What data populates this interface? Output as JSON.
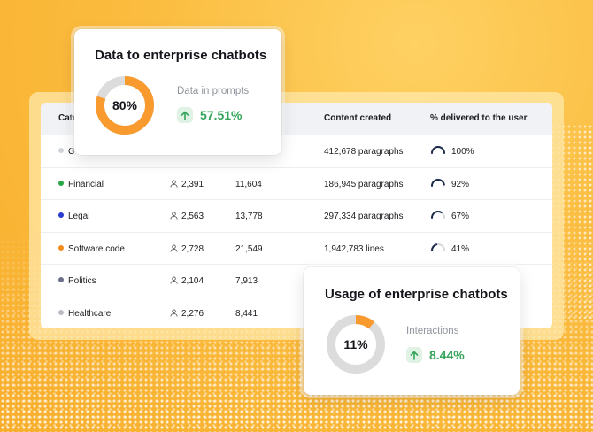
{
  "table": {
    "headers": {
      "category": "Cate",
      "content": "Content created",
      "pct": "% delivered to the user"
    },
    "rows": [
      {
        "category": "G",
        "dot_color": "#d0d3d9",
        "users": "",
        "prompts": "",
        "content": "412,678 paragraphs",
        "pct": "100%",
        "pct_value": 100
      },
      {
        "category": "Financial",
        "dot_color": "#2aa64a",
        "users": "2,391",
        "prompts": "11,604",
        "content": "186,945 paragraphs",
        "pct": "92%",
        "pct_value": 92
      },
      {
        "category": "Legal",
        "dot_color": "#2a3bd1",
        "users": "2,563",
        "prompts": "13,778",
        "content": "297,334 paragraphs",
        "pct": "67%",
        "pct_value": 67
      },
      {
        "category": "Software code",
        "dot_color": "#f58a1f",
        "users": "2,728",
        "prompts": "21,549",
        "content": "1,942,783 lines",
        "pct": "41%",
        "pct_value": 41
      },
      {
        "category": "Politics",
        "dot_color": "#6b6f8a",
        "users": "2,104",
        "prompts": "7,913",
        "content": "",
        "pct": "",
        "pct_value": null
      },
      {
        "category": "Healthcare",
        "dot_color": "#b9bcc3",
        "users": "2,276",
        "prompts": "8,441",
        "content": "",
        "pct": "",
        "pct_value": null
      }
    ]
  },
  "card_data": {
    "title": "Data to enterprise chatbots",
    "donut_label": "80%",
    "donut_fraction": 0.8,
    "subtitle": "Data in prompts",
    "delta": "57.51%"
  },
  "card_usage": {
    "title": "Usage of enterprise chatbots",
    "donut_label": "11%",
    "donut_fraction": 0.11,
    "subtitle": "Interactions",
    "delta": "8.44%"
  },
  "colors": {
    "accent_orange": "#f89a2e",
    "donut_track": "#dcdcdc",
    "gauge_dark": "#1b2a4a",
    "positive_green": "#35a45a",
    "background_yellow": "#fbb93a"
  }
}
